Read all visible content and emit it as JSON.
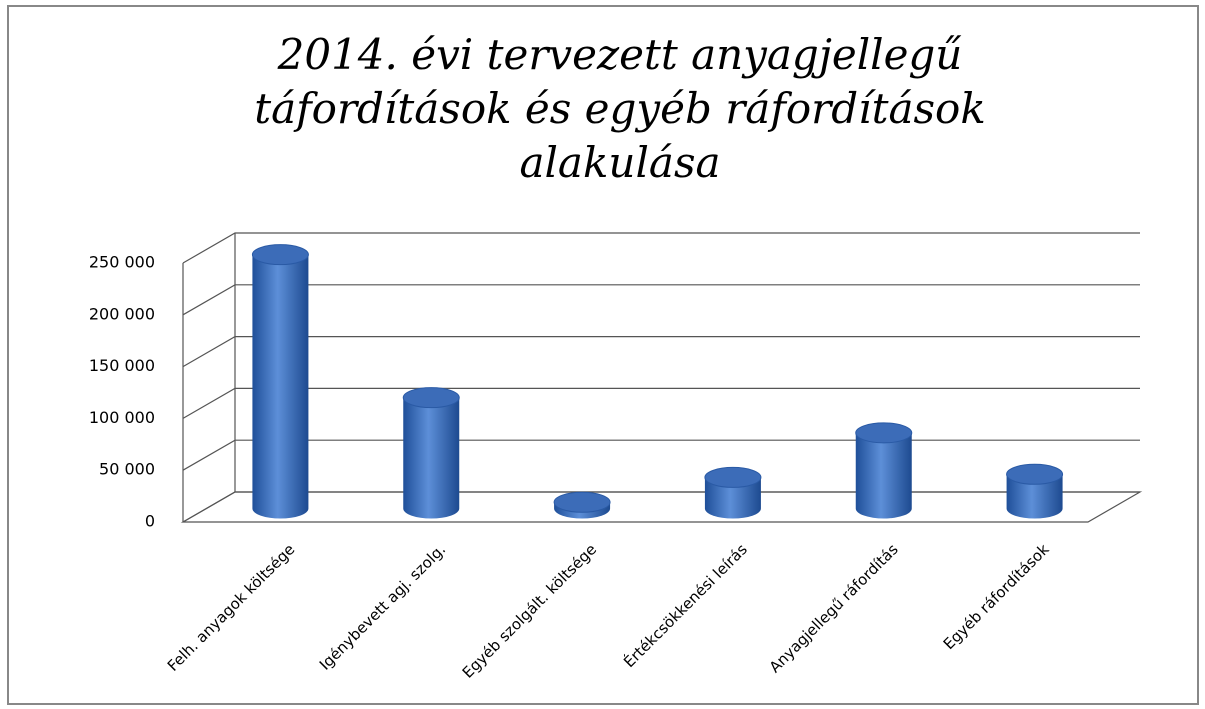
{
  "chart_data": {
    "type": "bar",
    "title": [
      "2014. évi tervezett anyagjellegű",
      "táfordítások és egyéb ráfordítások",
      "alakulása"
    ],
    "categories": [
      "Felh. anyagok költsége",
      "Igénybevett agj. szolg.",
      "Egyéb szolgált. költsége",
      "Értékcsökkenési leírás",
      "Anyagjellegű ráfordítás",
      "Egyéb ráfordítások"
    ],
    "values": [
      245000,
      107000,
      6000,
      30000,
      73000,
      33000
    ],
    "color": "#3f72c0",
    "ylim": [
      0,
      250000
    ],
    "yticks": [
      0,
      {
        "value": 50000,
        "label": "50 000"
      },
      {
        "value": 100000,
        "label": "100 000"
      },
      {
        "value": 150000,
        "label": "150 000"
      },
      {
        "value": 200000,
        "label": "200 000"
      },
      {
        "value": 250000,
        "label": "250 000"
      }
    ],
    "grid": true
  }
}
